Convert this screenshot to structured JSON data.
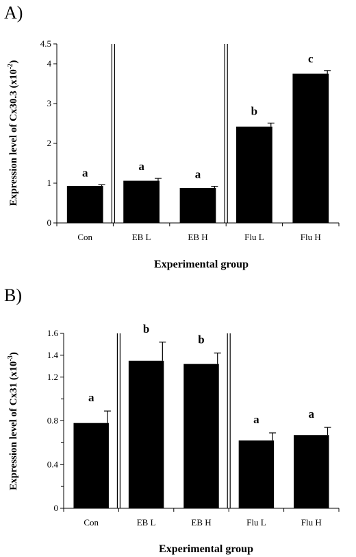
{
  "chart_data": [
    {
      "panel": "A)",
      "type": "bar",
      "categories": [
        "Con",
        "EB L",
        "EB H",
        "Flu L",
        "Flu H"
      ],
      "values": [
        0.93,
        1.06,
        0.88,
        2.42,
        3.75
      ],
      "errors": [
        0.03,
        0.06,
        0.04,
        0.09,
        0.08
      ],
      "significance": [
        "a",
        "a",
        "a",
        "b",
        "c"
      ],
      "ylabel_main": "Expression level of Cx30.3 (x10",
      "ylabel_exp": "-2",
      "ylabel_end": ")",
      "xlabel": "Experimental group",
      "ylim": [
        0,
        4.5
      ],
      "yticks": [
        0,
        1,
        2,
        3,
        4,
        4.5
      ],
      "ytick_labels": [
        "0",
        "1",
        "2",
        "3",
        "4",
        "4.5"
      ],
      "group_separators_after": [
        0,
        2
      ],
      "bar_color": "#000000"
    },
    {
      "panel": "B)",
      "type": "bar",
      "categories": [
        "Con",
        "EB L",
        "EB H",
        "Flu L",
        "Flu H"
      ],
      "values": [
        0.78,
        1.35,
        1.32,
        0.62,
        0.67
      ],
      "errors": [
        0.11,
        0.17,
        0.1,
        0.07,
        0.07
      ],
      "significance": [
        "a",
        "b",
        "b",
        "a",
        "a"
      ],
      "ylabel_main": "Expression level of Cx31 (x10",
      "ylabel_exp": "-3",
      "ylabel_end": ")",
      "xlabel": "Experimental group",
      "ylim": [
        0,
        1.6
      ],
      "yticks": [
        0,
        0.4,
        0.8,
        1.2,
        1.4,
        1.6
      ],
      "ytick_labels": [
        "0",
        "0.4",
        "0.8",
        "1.2",
        "1.4",
        "1.6"
      ],
      "minor_ticks": [
        0.2,
        0.6,
        1.0
      ],
      "group_separators_after": [
        0,
        2
      ],
      "bar_color": "#000000"
    }
  ]
}
